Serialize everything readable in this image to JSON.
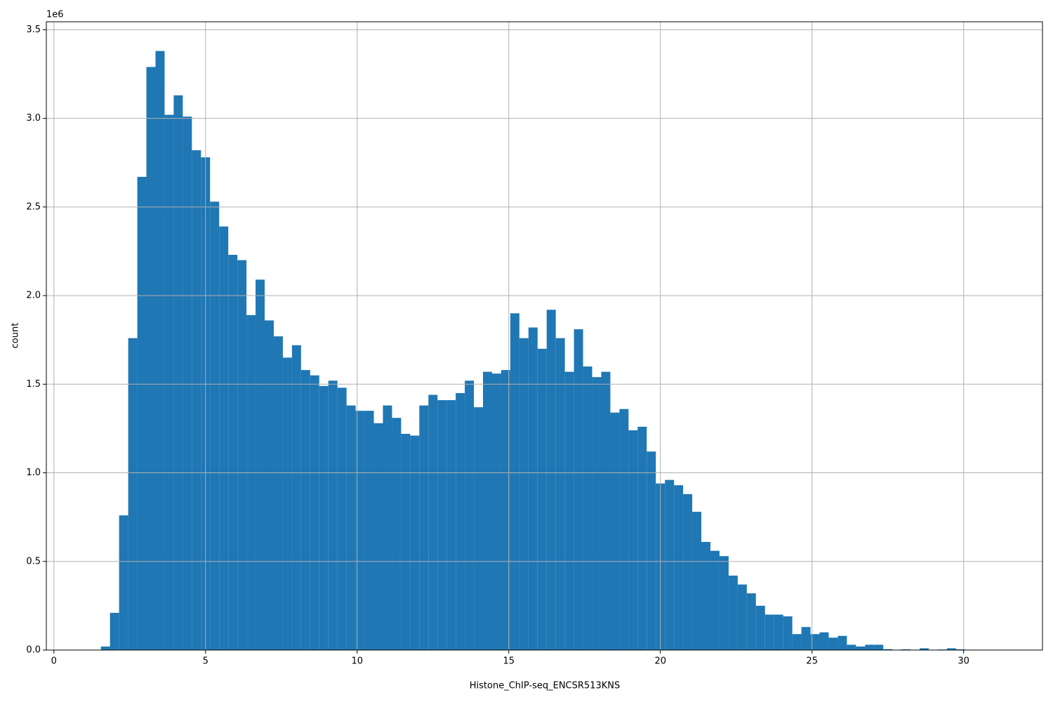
{
  "chart_data": {
    "type": "histogram",
    "x_label": "Histone_ChIP-seq_ENCSR513KNS",
    "y_label": "count",
    "y_offset_label": "1e6",
    "color": "#1f77b4",
    "grid": true,
    "bins": [
      1.25,
      1.55,
      1.85,
      2.15,
      2.45,
      2.75,
      3.05,
      3.35,
      3.65,
      3.95,
      4.25,
      4.55,
      4.85,
      5.15,
      5.45,
      5.75,
      6.05,
      6.35,
      6.65,
      6.95,
      7.25,
      7.55,
      7.85,
      8.15,
      8.45,
      8.75,
      9.05,
      9.35,
      9.65,
      9.95,
      10.25,
      10.55,
      10.85,
      11.15,
      11.45,
      11.75,
      12.05,
      12.35,
      12.65,
      12.95,
      13.25,
      13.55,
      13.85,
      14.15,
      14.45,
      14.75,
      15.05,
      15.35,
      15.65,
      15.95,
      16.25,
      16.55,
      16.85,
      17.15,
      17.45,
      17.75,
      18.05,
      18.35,
      18.65,
      18.95,
      19.25,
      19.55,
      19.85,
      20.15,
      20.45,
      20.75,
      21.05,
      21.35,
      21.65,
      21.95,
      22.25,
      22.55,
      22.85,
      23.15,
      23.45,
      23.75,
      24.05,
      24.35,
      24.65,
      24.95,
      25.25,
      25.55,
      25.85,
      26.15,
      26.45,
      26.75,
      27.05,
      27.35,
      27.65,
      27.95,
      28.25,
      28.55,
      28.85,
      29.15,
      29.45,
      29.75,
      30.05,
      30.35,
      30.65,
      30.95,
      31.25
    ],
    "values": [
      0,
      20000,
      210000,
      760000,
      1760000,
      2670000,
      3290000,
      3380000,
      3020000,
      3130000,
      3010000,
      2820000,
      2780000,
      2530000,
      2390000,
      2230000,
      2200000,
      1890000,
      2090000,
      1860000,
      1770000,
      1650000,
      1720000,
      1580000,
      1550000,
      1490000,
      1520000,
      1480000,
      1380000,
      1350000,
      1350000,
      1280000,
      1380000,
      1310000,
      1220000,
      1210000,
      1380000,
      1440000,
      1410000,
      1410000,
      1450000,
      1520000,
      1370000,
      1570000,
      1560000,
      1580000,
      1900000,
      1760000,
      1820000,
      1700000,
      1920000,
      1760000,
      1570000,
      1810000,
      1600000,
      1540000,
      1570000,
      1340000,
      1360000,
      1240000,
      1260000,
      1120000,
      940000,
      960000,
      930000,
      880000,
      780000,
      610000,
      560000,
      530000,
      420000,
      370000,
      320000,
      250000,
      200000,
      200000,
      190000,
      90000,
      130000,
      90000,
      100000,
      70000,
      80000,
      30000,
      20000,
      30000,
      30000,
      5000,
      1000,
      4000,
      1000,
      10000,
      1000,
      3000,
      10000,
      4000,
      2000,
      0,
      0,
      0
    ],
    "xlim": [
      -0.25,
      32.6
    ],
    "ylim": [
      0,
      3545000
    ],
    "xticks": [
      0,
      5,
      10,
      15,
      20,
      25,
      30
    ],
    "yticks": [
      {
        "value": 0,
        "label": "0.0"
      },
      {
        "value": 500000,
        "label": "0.5"
      },
      {
        "value": 1000000,
        "label": "1.0"
      },
      {
        "value": 1500000,
        "label": "1.5"
      },
      {
        "value": 2000000,
        "label": "2.0"
      },
      {
        "value": 2500000,
        "label": "2.5"
      },
      {
        "value": 3000000,
        "label": "3.0"
      },
      {
        "value": 3500000,
        "label": "3.5"
      }
    ]
  }
}
